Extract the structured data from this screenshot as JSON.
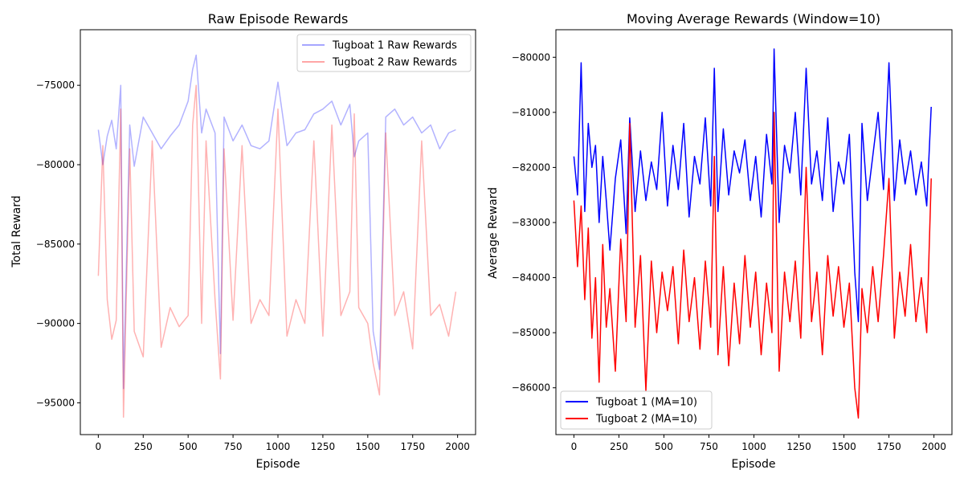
{
  "chart_data": [
    {
      "type": "line",
      "title": "Raw Episode Rewards",
      "xlabel": "Episode",
      "ylabel": "Total Reward",
      "xlim": [
        -100,
        2100
      ],
      "ylim": [
        -97000,
        -71500
      ],
      "xticks": [
        0,
        250,
        500,
        750,
        1000,
        1250,
        1500,
        1750,
        2000
      ],
      "yticks": [
        -95000,
        -90000,
        -85000,
        -80000,
        -75000
      ],
      "legend_position": "top-right",
      "series": [
        {
          "name": "Tugboat 1 Raw Rewards",
          "color": "#0000ff",
          "opacity": 0.3,
          "x": [
            0,
            25,
            50,
            75,
            100,
            125,
            140,
            175,
            200,
            250,
            300,
            350,
            400,
            450,
            500,
            525,
            545,
            575,
            600,
            650,
            680,
            700,
            750,
            800,
            850,
            900,
            950,
            1000,
            1050,
            1100,
            1150,
            1200,
            1250,
            1300,
            1350,
            1400,
            1425,
            1450,
            1500,
            1530,
            1565,
            1600,
            1650,
            1700,
            1750,
            1800,
            1850,
            1900,
            1950,
            1990
          ],
          "y": [
            -77800,
            -80000,
            -78200,
            -77200,
            -79000,
            -75000,
            -94100,
            -77500,
            -80100,
            -77000,
            -78000,
            -79000,
            -78200,
            -77500,
            -76000,
            -74000,
            -73100,
            -78000,
            -76500,
            -78000,
            -91900,
            -77000,
            -78500,
            -77500,
            -78800,
            -79000,
            -78500,
            -74800,
            -78800,
            -78000,
            -77800,
            -76800,
            -76500,
            -76000,
            -77500,
            -76200,
            -79500,
            -78500,
            -78000,
            -90500,
            -92900,
            -77000,
            -76500,
            -77500,
            -77000,
            -78000,
            -77500,
            -79000,
            -78000,
            -77800
          ]
        },
        {
          "name": "Tugboat 2 Raw Rewards",
          "color": "#ff0000",
          "opacity": 0.3,
          "x": [
            0,
            25,
            50,
            75,
            100,
            125,
            140,
            175,
            200,
            250,
            300,
            350,
            400,
            450,
            500,
            525,
            545,
            575,
            600,
            650,
            680,
            700,
            750,
            800,
            850,
            900,
            950,
            1000,
            1050,
            1100,
            1150,
            1200,
            1250,
            1300,
            1350,
            1400,
            1425,
            1450,
            1500,
            1530,
            1565,
            1600,
            1650,
            1700,
            1750,
            1800,
            1850,
            1900,
            1950,
            1990
          ],
          "y": [
            -87000,
            -78800,
            -88500,
            -91000,
            -89800,
            -76500,
            -95900,
            -79000,
            -90500,
            -92100,
            -78500,
            -91500,
            -89000,
            -90200,
            -89500,
            -77500,
            -75000,
            -90000,
            -78500,
            -88500,
            -93500,
            -79000,
            -89800,
            -78800,
            -90000,
            -88500,
            -89500,
            -76500,
            -90800,
            -88500,
            -90000,
            -78500,
            -90800,
            -77500,
            -89500,
            -88000,
            -76800,
            -89000,
            -90000,
            -92500,
            -94500,
            -78000,
            -89500,
            -88000,
            -91600,
            -78500,
            -89500,
            -88800,
            -90800,
            -88000
          ]
        }
      ]
    },
    {
      "type": "line",
      "title": "Moving Average Rewards (Window=10)",
      "xlabel": "Episode",
      "ylabel": "Average Reward",
      "xlim": [
        -100,
        2100
      ],
      "ylim": [
        -86850,
        -79500
      ],
      "xticks": [
        0,
        250,
        500,
        750,
        1000,
        1250,
        1500,
        1750,
        2000
      ],
      "yticks": [
        -86000,
        -85000,
        -84000,
        -83000,
        -82000,
        -81000,
        -80000
      ],
      "legend_position": "bottom-left",
      "series": [
        {
          "name": "Tugboat 1 (MA=10)",
          "color": "#0000ff",
          "x": [
            0,
            20,
            40,
            60,
            80,
            100,
            120,
            140,
            160,
            180,
            200,
            230,
            260,
            290,
            310,
            340,
            370,
            400,
            430,
            460,
            490,
            520,
            550,
            580,
            610,
            640,
            670,
            700,
            730,
            760,
            780,
            800,
            830,
            860,
            890,
            920,
            950,
            980,
            1010,
            1040,
            1070,
            1100,
            1112,
            1140,
            1170,
            1200,
            1230,
            1260,
            1290,
            1320,
            1350,
            1380,
            1410,
            1440,
            1470,
            1500,
            1530,
            1560,
            1580,
            1600,
            1630,
            1660,
            1690,
            1720,
            1750,
            1780,
            1810,
            1840,
            1870,
            1900,
            1930,
            1960,
            1985
          ],
          "y": [
            -81800,
            -82500,
            -80100,
            -82800,
            -81200,
            -82000,
            -81600,
            -83000,
            -81800,
            -82600,
            -83500,
            -82200,
            -81500,
            -83200,
            -81100,
            -82800,
            -81700,
            -82600,
            -81900,
            -82400,
            -81000,
            -82700,
            -81600,
            -82400,
            -81200,
            -82900,
            -81800,
            -82300,
            -81100,
            -82700,
            -80200,
            -82800,
            -81300,
            -82500,
            -81700,
            -82100,
            -81500,
            -82600,
            -81800,
            -82900,
            -81400,
            -82300,
            -79850,
            -83000,
            -81600,
            -82100,
            -81000,
            -82500,
            -80200,
            -82300,
            -81700,
            -82600,
            -81100,
            -82800,
            -81900,
            -82300,
            -81400,
            -83900,
            -84800,
            -81200,
            -82600,
            -81800,
            -81000,
            -82400,
            -80100,
            -82600,
            -81500,
            -82300,
            -81700,
            -82500,
            -81900,
            -82700,
            -80900
          ]
        },
        {
          "name": "Tugboat 2 (MA=10)",
          "color": "#ff0000",
          "x": [
            0,
            20,
            40,
            60,
            80,
            100,
            120,
            140,
            160,
            180,
            200,
            230,
            260,
            290,
            310,
            340,
            370,
            400,
            430,
            460,
            490,
            520,
            550,
            580,
            610,
            640,
            670,
            700,
            730,
            760,
            780,
            800,
            830,
            860,
            890,
            920,
            950,
            980,
            1010,
            1040,
            1070,
            1100,
            1112,
            1140,
            1170,
            1200,
            1230,
            1260,
            1290,
            1320,
            1350,
            1380,
            1410,
            1440,
            1470,
            1500,
            1530,
            1560,
            1580,
            1600,
            1630,
            1660,
            1690,
            1720,
            1750,
            1780,
            1810,
            1840,
            1870,
            1900,
            1930,
            1960,
            1985
          ],
          "y": [
            -82600,
            -83800,
            -82700,
            -84400,
            -83100,
            -85100,
            -84000,
            -85900,
            -83400,
            -84900,
            -84200,
            -85700,
            -83300,
            -84800,
            -81200,
            -84900,
            -83600,
            -86050,
            -83700,
            -85000,
            -83900,
            -84600,
            -83800,
            -85200,
            -83500,
            -84800,
            -84000,
            -85300,
            -83700,
            -84900,
            -81800,
            -85400,
            -83800,
            -85600,
            -84100,
            -85200,
            -83600,
            -84900,
            -83900,
            -85400,
            -84100,
            -85000,
            -81000,
            -85700,
            -83900,
            -84800,
            -83700,
            -85100,
            -82000,
            -84800,
            -83900,
            -85400,
            -83600,
            -84700,
            -83800,
            -84900,
            -84100,
            -86000,
            -86550,
            -84200,
            -85000,
            -83800,
            -84800,
            -83600,
            -82200,
            -85100,
            -83900,
            -84700,
            -83400,
            -84800,
            -84000,
            -85000,
            -82200
          ]
        }
      ]
    }
  ]
}
